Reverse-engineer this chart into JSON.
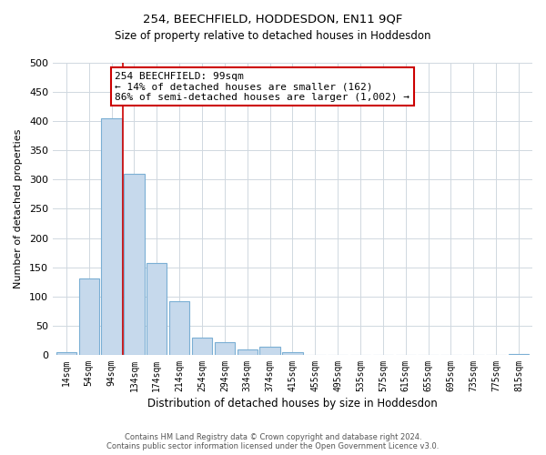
{
  "title": "254, BEECHFIELD, HODDESDON, EN11 9QF",
  "subtitle": "Size of property relative to detached houses in Hoddesdon",
  "xlabel": "Distribution of detached houses by size in Hoddesdon",
  "ylabel": "Number of detached properties",
  "bar_labels": [
    "14sqm",
    "54sqm",
    "94sqm",
    "134sqm",
    "174sqm",
    "214sqm",
    "254sqm",
    "294sqm",
    "334sqm",
    "374sqm",
    "415sqm",
    "455sqm",
    "495sqm",
    "535sqm",
    "575sqm",
    "615sqm",
    "655sqm",
    "695sqm",
    "735sqm",
    "775sqm",
    "815sqm"
  ],
  "bar_values": [
    5,
    130,
    405,
    310,
    157,
    92,
    30,
    22,
    10,
    14,
    5,
    0,
    0,
    0,
    0,
    0,
    0,
    0,
    0,
    0,
    2
  ],
  "bar_color": "#c6d9ec",
  "bar_edge_color": "#7bafd4",
  "vline_x_index": 2,
  "vline_color": "#cc0000",
  "annotation_text": "254 BEECHFIELD: 99sqm\n← 14% of detached houses are smaller (162)\n86% of semi-detached houses are larger (1,002) →",
  "annotation_box_color": "#ffffff",
  "annotation_box_edge": "#cc0000",
  "ylim": [
    0,
    500
  ],
  "yticks": [
    0,
    50,
    100,
    150,
    200,
    250,
    300,
    350,
    400,
    450,
    500
  ],
  "footer": "Contains HM Land Registry data © Crown copyright and database right 2024.\nContains public sector information licensed under the Open Government Licence v3.0.",
  "bg_color": "#ffffff",
  "grid_color": "#d0d8e0"
}
